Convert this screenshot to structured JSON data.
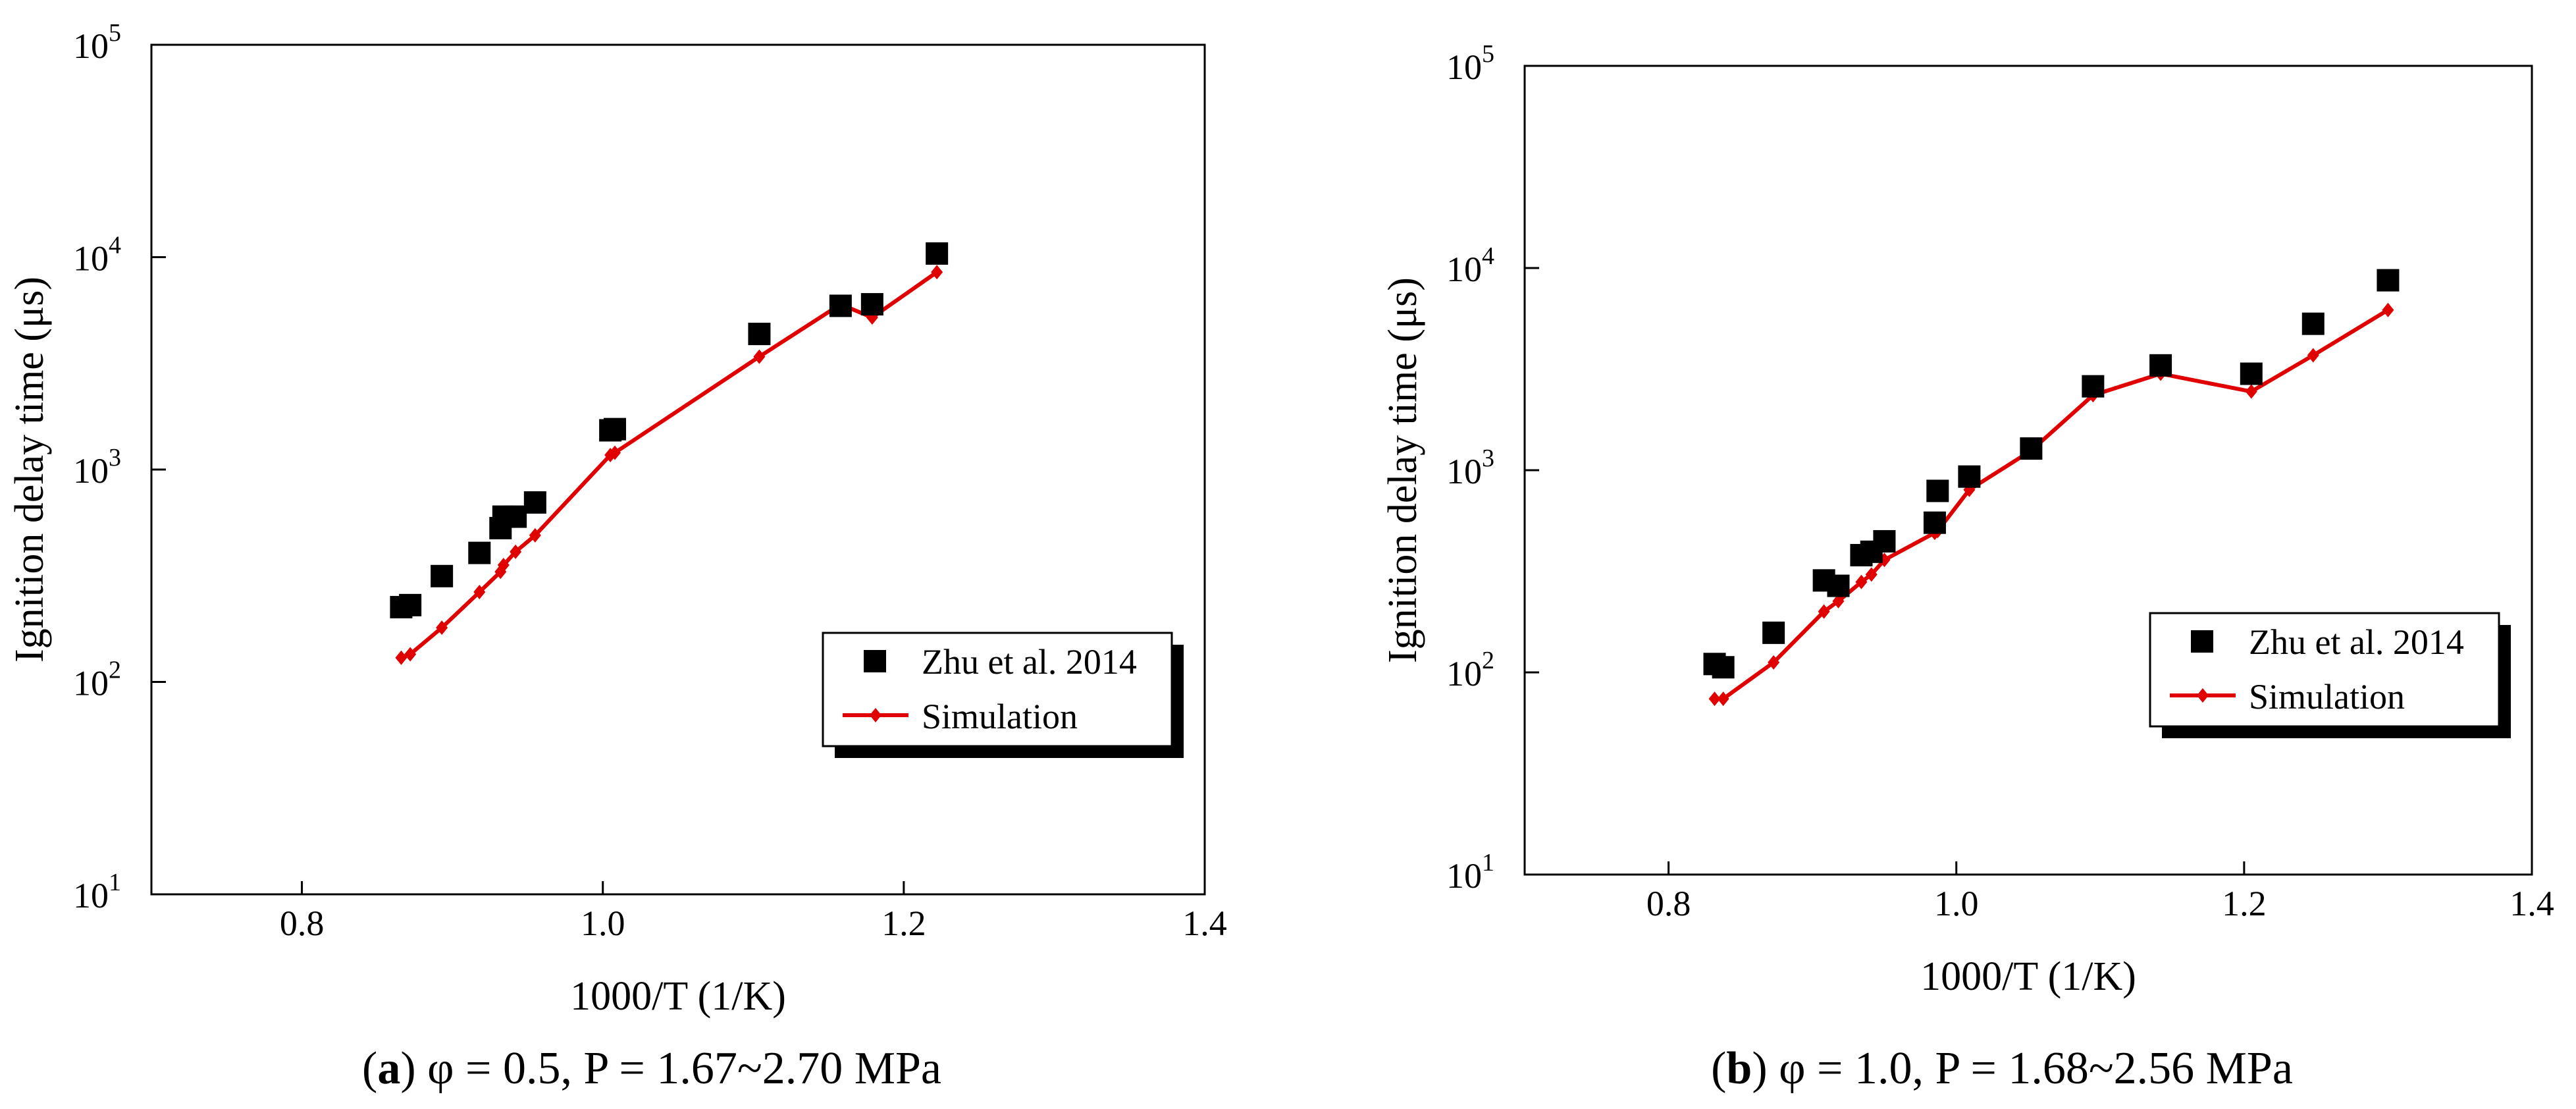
{
  "chart_data": [
    {
      "type": "scatter",
      "panel_label": "a",
      "caption": "φ = 0.5, P = 1.67~2.70 MPa",
      "xlabel": "1000/T (1/K)",
      "ylabel": "Ignition delay time (μs)",
      "xlim": [
        0.7,
        1.4
      ],
      "xticks": [
        0.8,
        1.0,
        1.2,
        1.4
      ],
      "xtick_labels": [
        "0.8",
        "1.0",
        "1.2",
        "1.4"
      ],
      "yscale": "log",
      "ylim": [
        10,
        100000
      ],
      "yticks": [
        {
          "value": 10,
          "base": "10",
          "exp": "1"
        },
        {
          "value": 100,
          "base": "10",
          "exp": "2"
        },
        {
          "value": 1000,
          "base": "10",
          "exp": "3"
        },
        {
          "value": 10000,
          "base": "10",
          "exp": "4"
        },
        {
          "value": 100000,
          "base": "10",
          "exp": "5"
        }
      ],
      "legend_position": "bottom-right",
      "series": [
        {
          "name": "Zhu et al. 2014",
          "kind": "marker",
          "color": "#000000",
          "points": [
            [
              0.866,
              225
            ],
            [
              0.872,
              230
            ],
            [
              0.893,
              315
            ],
            [
              0.918,
              405
            ],
            [
              0.932,
              530
            ],
            [
              0.934,
              600
            ],
            [
              0.942,
              600
            ],
            [
              0.955,
              700
            ],
            [
              1.005,
              1530
            ],
            [
              1.008,
              1550
            ],
            [
              1.104,
              4350
            ],
            [
              1.158,
              5900
            ],
            [
              1.179,
              6000
            ],
            [
              1.222,
              10400
            ]
          ]
        },
        {
          "name": "Simulation",
          "kind": "line",
          "color": "#e00000",
          "points": [
            [
              0.866,
              130
            ],
            [
              0.872,
              135
            ],
            [
              0.893,
              180
            ],
            [
              0.918,
              265
            ],
            [
              0.932,
              330
            ],
            [
              0.934,
              355
            ],
            [
              0.942,
              410
            ],
            [
              0.955,
              490
            ],
            [
              1.005,
              1170
            ],
            [
              1.008,
              1200
            ],
            [
              1.104,
              3400
            ],
            [
              1.158,
              6000
            ],
            [
              1.179,
              5200
            ],
            [
              1.222,
              8500
            ]
          ]
        }
      ]
    },
    {
      "type": "scatter",
      "panel_label": "b",
      "caption": "φ = 1.0, P = 1.68~2.56 MPa",
      "xlabel": "1000/T (1/K)",
      "ylabel": "Ignition delay time (μs)",
      "xlim": [
        0.7,
        1.4
      ],
      "xticks": [
        0.8,
        1.0,
        1.2,
        1.4
      ],
      "xtick_labels": [
        "0.8",
        "1.0",
        "1.2",
        "1.4"
      ],
      "yscale": "log",
      "ylim": [
        10,
        100000
      ],
      "yticks": [
        {
          "value": 10,
          "base": "10",
          "exp": "1"
        },
        {
          "value": 100,
          "base": "10",
          "exp": "2"
        },
        {
          "value": 1000,
          "base": "10",
          "exp": "3"
        },
        {
          "value": 10000,
          "base": "10",
          "exp": "4"
        },
        {
          "value": 100000,
          "base": "10",
          "exp": "5"
        }
      ],
      "legend_position": "bottom-right",
      "series": [
        {
          "name": "Zhu et al. 2014",
          "kind": "marker",
          "color": "#000000",
          "points": [
            [
              0.832,
              110
            ],
            [
              0.838,
              106
            ],
            [
              0.873,
              157
            ],
            [
              0.908,
              285
            ],
            [
              0.918,
              268
            ],
            [
              0.934,
              380
            ],
            [
              0.941,
              395
            ],
            [
              0.95,
              445
            ],
            [
              0.985,
              550
            ],
            [
              0.987,
              790
            ],
            [
              1.009,
              930
            ],
            [
              1.052,
              1280
            ],
            [
              1.095,
              2600
            ],
            [
              1.142,
              3300
            ],
            [
              1.205,
              3000
            ],
            [
              1.248,
              5300
            ],
            [
              1.3,
              8700
            ]
          ]
        },
        {
          "name": "Simulation",
          "kind": "line",
          "color": "#e00000",
          "points": [
            [
              0.832,
              74
            ],
            [
              0.838,
              74
            ],
            [
              0.873,
              112
            ],
            [
              0.908,
              200
            ],
            [
              0.918,
              225
            ],
            [
              0.934,
              280
            ],
            [
              0.941,
              305
            ],
            [
              0.95,
              360
            ],
            [
              0.985,
              490
            ],
            [
              0.987,
              500
            ],
            [
              1.009,
              800
            ],
            [
              1.052,
              1250
            ],
            [
              1.095,
              2350
            ],
            [
              1.142,
              3000
            ],
            [
              1.205,
              2450
            ],
            [
              1.248,
              3700
            ],
            [
              1.3,
              6200
            ]
          ]
        }
      ]
    }
  ]
}
